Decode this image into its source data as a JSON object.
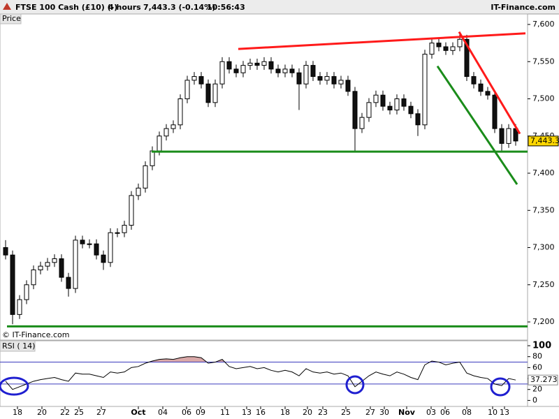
{
  "header": {
    "instrument": "FTSE 100 Cash (£10) (-)",
    "timeframe": "4 hours",
    "quote": "7,443.3 (-0.14%)",
    "time": "10:56:43",
    "brand": "IT-Finance.com"
  },
  "chart_data": [
    {
      "type": "candlestick",
      "pane_label": "Price",
      "watermark": "© IT-Finance.com",
      "current_price_label": "7,443.3",
      "up_color": "#ffffff",
      "down_color": "#111111",
      "wick_color": "#000000",
      "price_box_color": "#ffd700",
      "xlim": [
        -0.8,
        74.7
      ],
      "ylim": [
        7175.6,
        7614.1
      ],
      "yticks": [
        {
          "value": 7200,
          "label": "7,200"
        },
        {
          "value": 7250,
          "label": "7,250"
        },
        {
          "value": 7300,
          "label": "7,300"
        },
        {
          "value": 7350,
          "label": "7,350"
        },
        {
          "value": 7400,
          "label": "7,400"
        },
        {
          "value": 7450,
          "label": "7,450"
        },
        {
          "value": 7500,
          "label": "7,500"
        },
        {
          "value": 7550,
          "label": "7,550"
        },
        {
          "value": 7600,
          "label": "7,600"
        }
      ],
      "open": [
        7300,
        7290,
        7210,
        7230,
        7250,
        7270,
        7275,
        7280,
        7285,
        7260,
        7245,
        7310,
        7305,
        7305,
        7290,
        7280,
        7320,
        7320,
        7330,
        7370,
        7380,
        7410,
        7430,
        7450,
        7460,
        7465,
        7500,
        7525,
        7530,
        7520,
        7495,
        7520,
        7550,
        7540,
        7535,
        7545,
        7548,
        7545,
        7550,
        7540,
        7535,
        7540,
        7535,
        7520,
        7545,
        7530,
        7525,
        7530,
        7520,
        7525,
        7510,
        7460,
        7475,
        7495,
        7505,
        7490,
        7485,
        7500,
        7490,
        7480,
        7465,
        7560,
        7575,
        7570,
        7565,
        7570,
        7580,
        7530,
        7520,
        7510,
        7505,
        7460,
        7440,
        7460
      ],
      "high": [
        7310,
        7296,
        7236,
        7256,
        7276,
        7281,
        7286,
        7291,
        7291,
        7266,
        7316,
        7316,
        7311,
        7311,
        7296,
        7326,
        7326,
        7336,
        7376,
        7386,
        7416,
        7436,
        7456,
        7466,
        7471,
        7506,
        7531,
        7536,
        7536,
        7526,
        7526,
        7556,
        7556,
        7546,
        7551,
        7554,
        7554,
        7556,
        7556,
        7546,
        7546,
        7546,
        7541,
        7551,
        7551,
        7536,
        7536,
        7536,
        7531,
        7531,
        7516,
        7481,
        7501,
        7511,
        7511,
        7496,
        7506,
        7506,
        7496,
        7486,
        7566,
        7581,
        7581,
        7576,
        7576,
        7588,
        7586,
        7536,
        7526,
        7516,
        7511,
        7466,
        7466,
        7466
      ],
      "low": [
        7284,
        7197,
        7204,
        7224,
        7244,
        7264,
        7269,
        7274,
        7254,
        7234,
        7239,
        7299,
        7299,
        7284,
        7270,
        7274,
        7314,
        7314,
        7324,
        7364,
        7374,
        7404,
        7424,
        7444,
        7454,
        7459,
        7494,
        7519,
        7514,
        7489,
        7489,
        7514,
        7534,
        7529,
        7529,
        7539,
        7539,
        7539,
        7534,
        7529,
        7529,
        7529,
        7485,
        7514,
        7524,
        7519,
        7519,
        7514,
        7514,
        7504,
        7430,
        7454,
        7469,
        7489,
        7484,
        7479,
        7479,
        7484,
        7474,
        7450,
        7459,
        7554,
        7564,
        7559,
        7559,
        7564,
        7524,
        7514,
        7504,
        7499,
        7454,
        7428,
        7434,
        7437
      ],
      "close": [
        7290,
        7210,
        7230,
        7250,
        7270,
        7275,
        7280,
        7285,
        7260,
        7245,
        7310,
        7305,
        7305,
        7290,
        7280,
        7320,
        7320,
        7330,
        7370,
        7380,
        7410,
        7430,
        7450,
        7460,
        7465,
        7500,
        7525,
        7530,
        7520,
        7495,
        7520,
        7550,
        7540,
        7535,
        7545,
        7548,
        7545,
        7550,
        7540,
        7535,
        7540,
        7535,
        7520,
        7545,
        7530,
        7525,
        7530,
        7520,
        7525,
        7510,
        7460,
        7475,
        7495,
        7505,
        7490,
        7485,
        7500,
        7490,
        7480,
        7465,
        7560,
        7575,
        7570,
        7565,
        7570,
        7580,
        7530,
        7520,
        7510,
        7505,
        7460,
        7440,
        7460,
        7443.3
      ],
      "trendlines": [
        {
          "color": "#ff1a1a",
          "x": [
            33.3,
            74.4
          ],
          "y": [
            7567,
            7588
          ]
        },
        {
          "color": "#ff1a1a",
          "x": [
            64.9,
            73.6
          ],
          "y": [
            7590,
            7453
          ]
        },
        {
          "color": "#1a8c1a",
          "x": [
            61.8,
            73.2
          ],
          "y": [
            7544,
            7385
          ]
        },
        {
          "color": "#1a8c1a",
          "x": [
            20.9,
            74.7
          ],
          "y": [
            7429,
            7429
          ]
        },
        {
          "color": "#1a8c1a",
          "x": [
            0.2,
            74.7
          ],
          "y": [
            7194,
            7194
          ]
        }
      ]
    },
    {
      "type": "line",
      "pane_label": "RSI ( 14)",
      "color": "#000000",
      "level_color": "#3b3bbd",
      "overbought_color": "#d9a8a8",
      "levels": [
        30,
        70
      ],
      "xlim": [
        -0.8,
        74.7
      ],
      "ylim": [
        -11,
        109
      ],
      "yticks": [
        0,
        20,
        40,
        60,
        80,
        100
      ],
      "xticks": [
        {
          "value": 1.7,
          "label": "18"
        },
        {
          "value": 5.2,
          "label": "20"
        },
        {
          "value": 8.5,
          "label": "22"
        },
        {
          "value": 10.5,
          "label": "25"
        },
        {
          "value": 13.7,
          "label": "27"
        },
        {
          "value": 19,
          "label": "Oct"
        },
        {
          "value": 22.5,
          "label": "04"
        },
        {
          "value": 25.9,
          "label": "06"
        },
        {
          "value": 27.9,
          "label": "09"
        },
        {
          "value": 31.4,
          "label": "11"
        },
        {
          "value": 34.5,
          "label": "13"
        },
        {
          "value": 36.5,
          "label": "16"
        },
        {
          "value": 40,
          "label": "18"
        },
        {
          "value": 43.2,
          "label": "20"
        },
        {
          "value": 45.4,
          "label": "23"
        },
        {
          "value": 48.7,
          "label": "25"
        },
        {
          "value": 52.2,
          "label": "27"
        },
        {
          "value": 54.2,
          "label": "30"
        },
        {
          "value": 57.4,
          "label": "Nov"
        },
        {
          "value": 60.9,
          "label": "03"
        },
        {
          "value": 62.9,
          "label": "06"
        },
        {
          "value": 66,
          "label": "08"
        },
        {
          "value": 69.7,
          "label": "10"
        },
        {
          "value": 71.4,
          "label": "13"
        }
      ],
      "values": [
        35,
        20,
        25,
        30,
        35,
        38,
        40,
        42,
        38,
        35,
        50,
        48,
        48,
        45,
        42,
        52,
        50,
        52,
        60,
        62,
        68,
        72,
        75,
        76,
        75,
        78,
        80,
        80,
        78,
        68,
        70,
        75,
        62,
        58,
        60,
        62,
        58,
        60,
        55,
        52,
        55,
        52,
        45,
        58,
        52,
        50,
        52,
        48,
        50,
        45,
        25,
        35,
        45,
        52,
        48,
        45,
        52,
        48,
        42,
        38,
        65,
        72,
        70,
        65,
        68,
        70,
        50,
        45,
        42,
        40,
        30,
        27,
        40,
        37.273
      ]
    }
  ]
}
